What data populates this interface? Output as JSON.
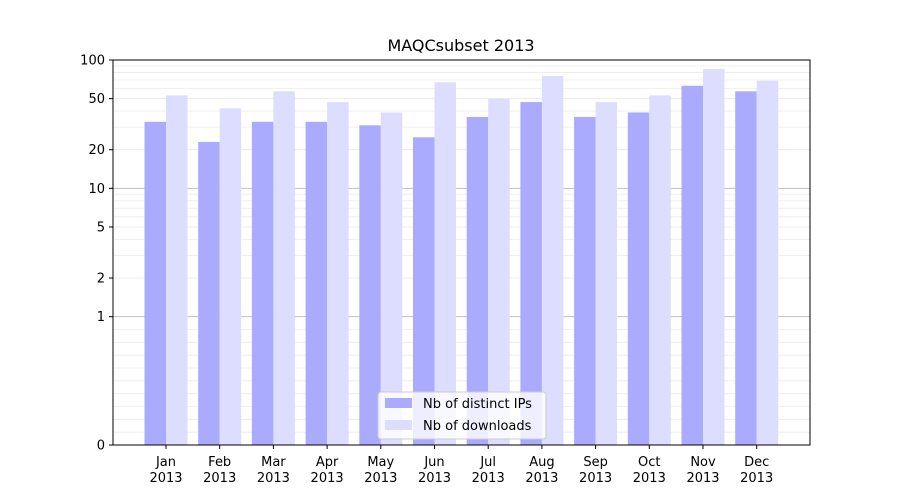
{
  "chart_data": {
    "type": "bar",
    "title": "MAQCsubset 2013",
    "xlabel": "",
    "ylabel": "",
    "yscale": "symlog",
    "ylim": [
      0,
      100
    ],
    "y_ticks": [
      0,
      1,
      2,
      5,
      10,
      20,
      50,
      100
    ],
    "categories": [
      "Jan\n2013",
      "Feb\n2013",
      "Mar\n2013",
      "Apr\n2013",
      "May\n2013",
      "Jun\n2013",
      "Jul\n2013",
      "Aug\n2013",
      "Sep\n2013",
      "Oct\n2013",
      "Nov\n2013",
      "Dec\n2013"
    ],
    "series": [
      {
        "name": "Nb of distinct IPs",
        "color": "#aaaaff",
        "values": [
          33,
          23,
          33,
          33,
          31,
          25,
          36,
          47,
          36,
          39,
          63,
          57
        ]
      },
      {
        "name": "Nb of downloads",
        "color": "#ddddff",
        "values": [
          53,
          42,
          57,
          47,
          39,
          67,
          50,
          75,
          47,
          53,
          85,
          69
        ]
      }
    ],
    "legend_position": "bottom-center",
    "grid": "horizontal"
  }
}
